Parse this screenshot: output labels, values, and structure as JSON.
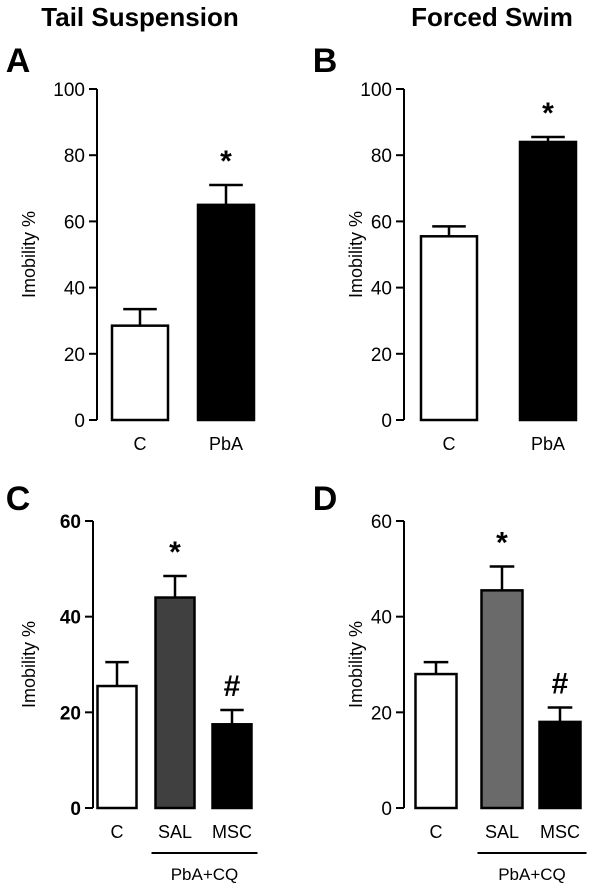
{
  "chart_data": [
    {
      "type": "bar",
      "panel": "A",
      "title": "Tail Suspension",
      "ylabel": "Imobility %",
      "ylim": [
        0,
        100
      ],
      "yticks": [
        0,
        20,
        40,
        60,
        80,
        100
      ],
      "categories": [
        "C",
        "PbA"
      ],
      "values": [
        28.5,
        65
      ],
      "errors": [
        5,
        6
      ],
      "bar_colors": [
        "#ffffff",
        "#000000"
      ],
      "significance": [
        "",
        "*"
      ],
      "group_label": ""
    },
    {
      "type": "bar",
      "panel": "B",
      "title": "Forced Swim",
      "ylabel": "Imobility %",
      "ylim": [
        0,
        100
      ],
      "yticks": [
        0,
        20,
        40,
        60,
        80,
        100
      ],
      "categories": [
        "C",
        "PbA"
      ],
      "values": [
        55.5,
        84
      ],
      "errors": [
        3,
        1.5
      ],
      "bar_colors": [
        "#ffffff",
        "#000000"
      ],
      "significance": [
        "",
        "*"
      ],
      "group_label": ""
    },
    {
      "type": "bar",
      "panel": "C",
      "title": "",
      "ylabel": "Imobility %",
      "ylim": [
        0,
        60
      ],
      "yticks": [
        0,
        20,
        40,
        60
      ],
      "categories": [
        "C",
        "SAL",
        "MSC"
      ],
      "values": [
        25.5,
        44,
        17.5
      ],
      "errors": [
        5,
        4.5,
        3
      ],
      "bar_colors": [
        "#ffffff",
        "#404040",
        "#000000"
      ],
      "significance": [
        "",
        "*",
        "#"
      ],
      "group_label": "PbA+CQ"
    },
    {
      "type": "bar",
      "panel": "D",
      "title": "",
      "ylabel": "Imobility %",
      "ylim": [
        0,
        60
      ],
      "yticks": [
        0,
        20,
        40,
        60
      ],
      "categories": [
        "C",
        "SAL",
        "MSC"
      ],
      "values": [
        28,
        45.5,
        18
      ],
      "errors": [
        2.5,
        5,
        3
      ],
      "bar_colors": [
        "#ffffff",
        "#6a6a6a",
        "#000000"
      ],
      "significance": [
        "",
        "*",
        "#"
      ],
      "group_label": "PbA+CQ"
    }
  ]
}
